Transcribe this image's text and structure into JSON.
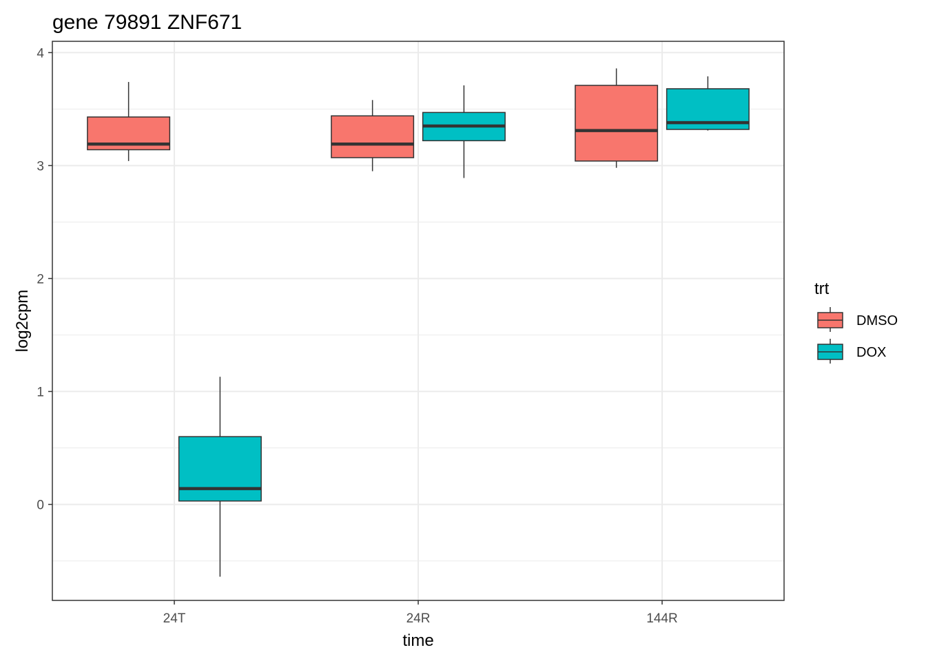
{
  "chart_data": {
    "type": "boxplot",
    "title": "gene 79891 ZNF671",
    "xlabel": "time",
    "ylabel": "log2cpm",
    "categories": [
      "24T",
      "24R",
      "144R"
    ],
    "ylim": [
      -0.85,
      4.1
    ],
    "yticks": [
      "0",
      "1",
      "2",
      "3",
      "4"
    ],
    "grid": true,
    "legend": {
      "title": "trt",
      "position": "right",
      "entries": [
        "DMSO",
        "DOX"
      ]
    },
    "series": [
      {
        "name": "DMSO",
        "color": "#F8766D",
        "boxes": [
          {
            "category": "24T",
            "whisker_low": 3.04,
            "q1": 3.14,
            "median": 3.19,
            "q3": 3.43,
            "whisker_high": 3.74
          },
          {
            "category": "24R",
            "whisker_low": 2.95,
            "q1": 3.07,
            "median": 3.19,
            "q3": 3.44,
            "whisker_high": 3.58
          },
          {
            "category": "144R",
            "whisker_low": 2.98,
            "q1": 3.04,
            "median": 3.31,
            "q3": 3.71,
            "whisker_high": 3.86
          }
        ]
      },
      {
        "name": "DOX",
        "color": "#00BFC4",
        "boxes": [
          {
            "category": "24T",
            "whisker_low": -0.64,
            "q1": 0.03,
            "median": 0.14,
            "q3": 0.6,
            "whisker_high": 1.13
          },
          {
            "category": "24R",
            "whisker_low": 2.89,
            "q1": 3.22,
            "median": 3.35,
            "q3": 3.47,
            "whisker_high": 3.71
          },
          {
            "category": "144R",
            "whisker_low": 3.31,
            "q1": 3.32,
            "median": 3.38,
            "q3": 3.68,
            "whisker_high": 3.79
          }
        ]
      }
    ]
  }
}
